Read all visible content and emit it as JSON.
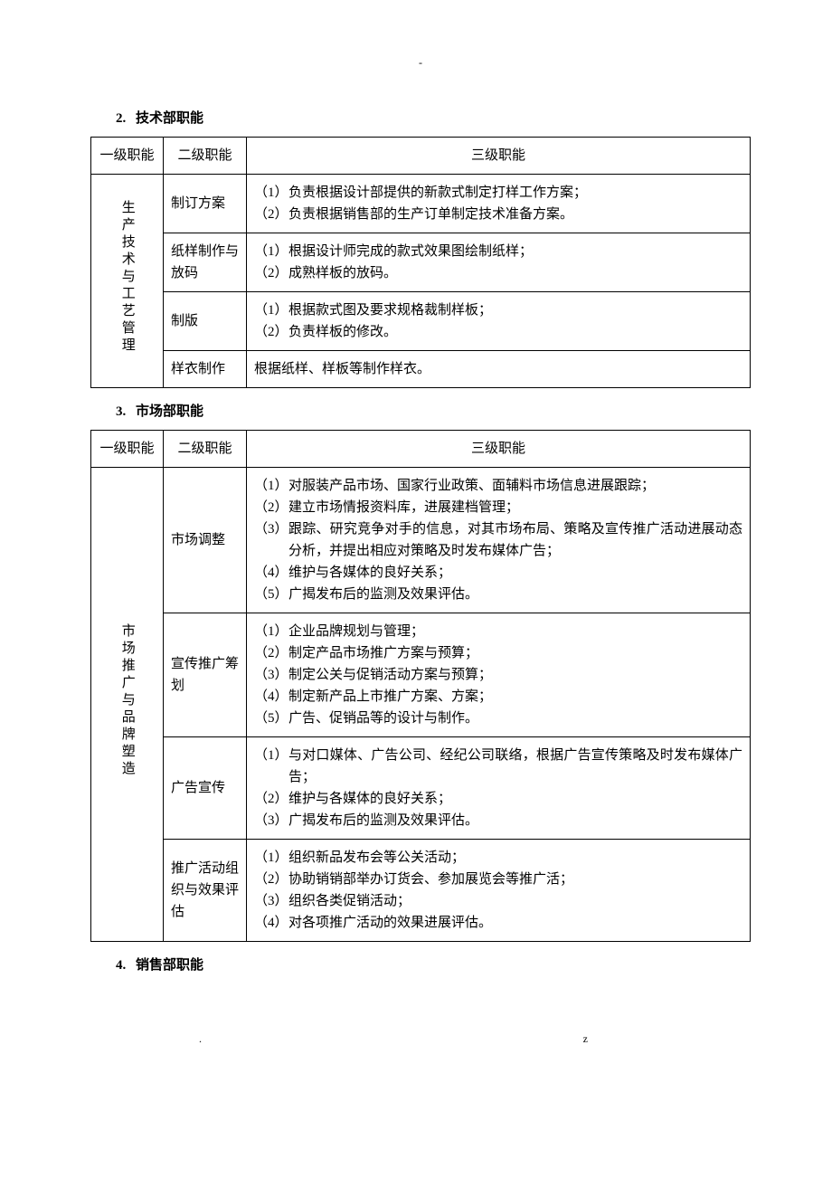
{
  "top_dash": "-",
  "footer_left": ".",
  "footer_right": "z",
  "sections": [
    {
      "num": "2.",
      "title": "技术部职能",
      "headers": [
        "一级职能",
        "二级职能",
        "三级职能"
      ],
      "level1": "生产技术与工艺管理",
      "rows": [
        {
          "level2": "制订方案",
          "items": [
            "负责根据设计部提供的新款式制定打样工作方案；",
            "负责根据销售部的生产订单制定技术准备方案。"
          ]
        },
        {
          "level2": "纸样制作与放码",
          "items": [
            "根据设计师完成的款式效果图绘制纸样；",
            "成熟样板的放码。"
          ]
        },
        {
          "level2": "制版",
          "items": [
            "根据款式图及要求规格裁制样板；",
            "负责样板的修改。"
          ]
        },
        {
          "level2": "样衣制作",
          "plain": "根据纸样、样板等制作样衣。"
        }
      ]
    },
    {
      "num": "3.",
      "title": "市场部职能",
      "headers": [
        "一级职能",
        "二级职能",
        "三级职能"
      ],
      "level1": "市场推广与品牌塑造",
      "rows": [
        {
          "level2": "市场调整",
          "items": [
            "对服装产品市场、国家行业政策、面辅料市场信息进展跟踪；",
            "建立市场情报资料库，进展建档管理；",
            "跟踪、研究竞争对手的信息，对其市场布局、策略及宣传推广活动进展动态分析，并提出相应对策略及时发布媒体广告；",
            "维护与各媒体的良好关系；",
            "广揭发布后的监测及效果评估。"
          ]
        },
        {
          "level2": "宣传推广筹划",
          "items": [
            "企业品牌规划与管理；",
            "制定产品市场推广方案与预算；",
            "制定公关与促销活动方案与预算；",
            "制定新产品上市推广方案、方案；",
            "广告、促销品等的设计与制作。"
          ]
        },
        {
          "level2": "广告宣传",
          "items": [
            "与对口媒体、广告公司、经纪公司联络，根据广告宣传策略及时发布媒体广告；",
            "维护与各媒体的良好关系；",
            "广揭发布后的监测及效果评估。"
          ]
        },
        {
          "level2": "推广活动组织与效果评估",
          "items": [
            "组织新品发布会等公关活动；",
            "协助销销部举办订货会、参加展览会等推广活；",
            "组织各类促销活动；",
            "对各项推广活动的效果进展评估。"
          ]
        }
      ]
    },
    {
      "num": "4.",
      "title": "销售部职能",
      "rows": []
    }
  ]
}
